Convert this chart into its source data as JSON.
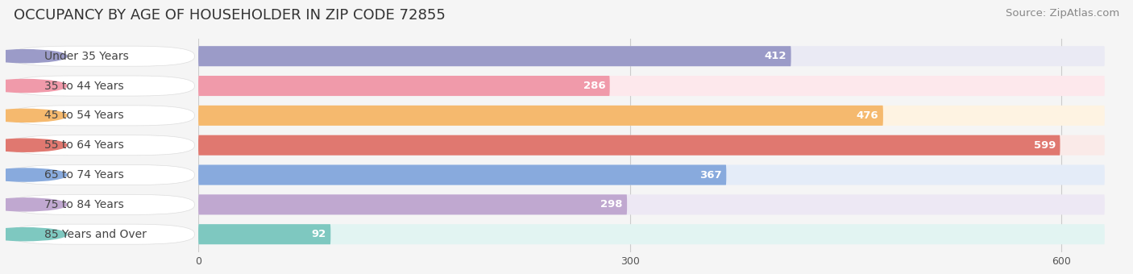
{
  "title": "OCCUPANCY BY AGE OF HOUSEHOLDER IN ZIP CODE 72855",
  "source": "Source: ZipAtlas.com",
  "categories": [
    "Under 35 Years",
    "35 to 44 Years",
    "45 to 54 Years",
    "55 to 64 Years",
    "65 to 74 Years",
    "75 to 84 Years",
    "85 Years and Over"
  ],
  "values": [
    412,
    286,
    476,
    599,
    367,
    298,
    92
  ],
  "bar_colors": [
    "#9b9bc8",
    "#f09aaa",
    "#f5b96e",
    "#e07870",
    "#88aadd",
    "#c0a8d0",
    "#7ec8c0"
  ],
  "bar_bg_colors": [
    "#eaeaf4",
    "#fde8ec",
    "#fef3e2",
    "#faeae8",
    "#e4ecf8",
    "#ede8f4",
    "#e2f4f2"
  ],
  "dot_colors": [
    "#9b9bc8",
    "#f09aaa",
    "#f5b96e",
    "#e07870",
    "#88aadd",
    "#c0a8d0",
    "#7ec8c0"
  ],
  "xlim_max": 630,
  "xticks": [
    0,
    300,
    600
  ],
  "bar_height": 0.68,
  "title_fontsize": 13,
  "source_fontsize": 9.5,
  "label_fontsize": 10,
  "value_fontsize": 9.5,
  "background_color": "#f5f5f5",
  "label_bg_color": "#ffffff"
}
